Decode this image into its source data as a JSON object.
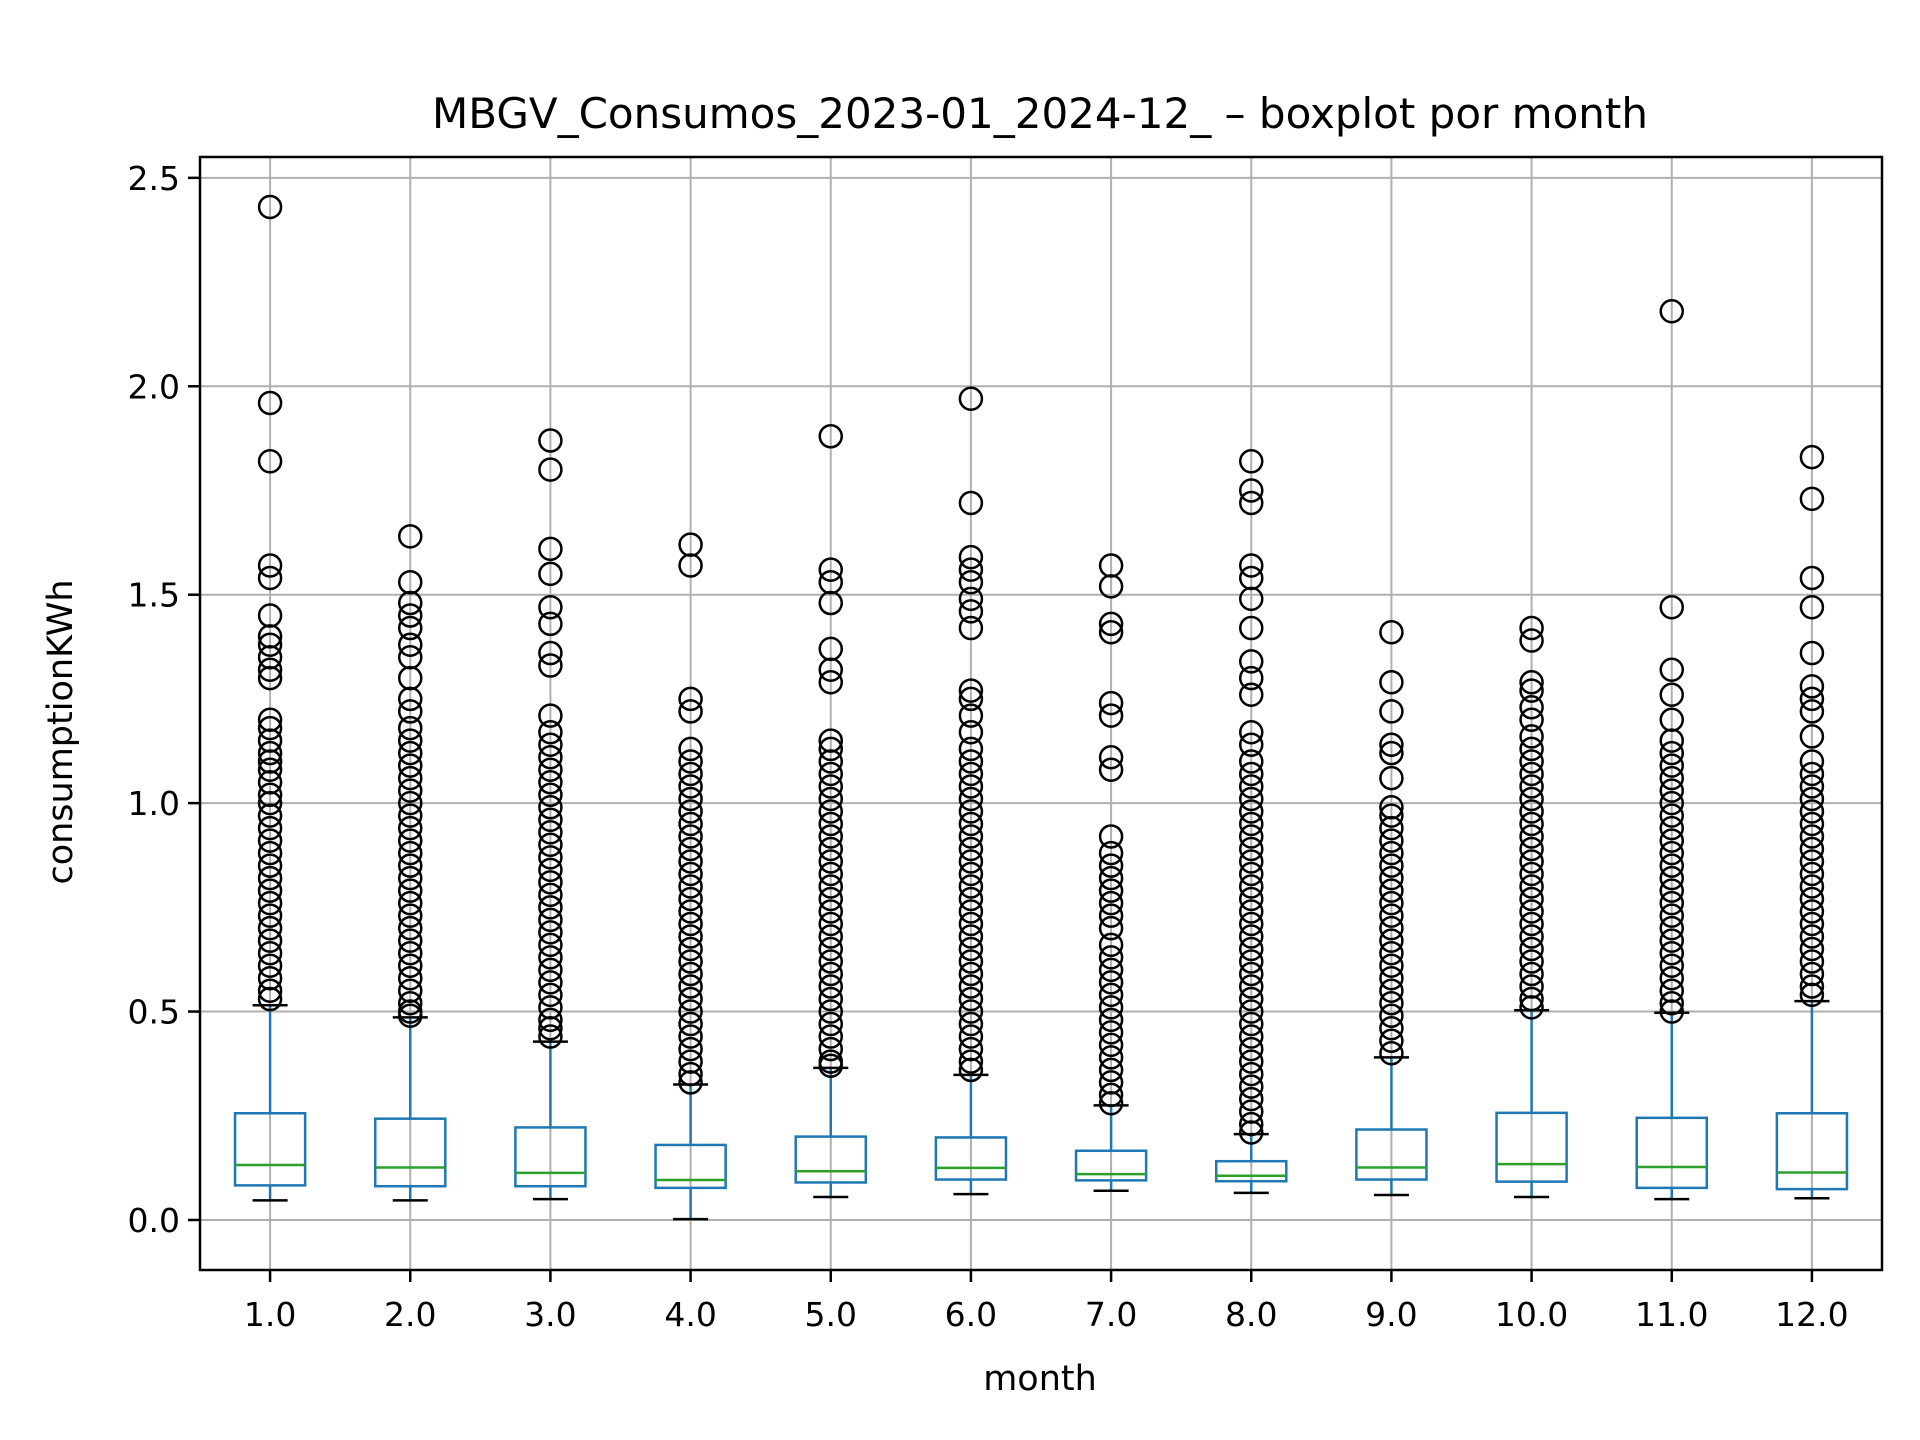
{
  "chart_data": {
    "type": "boxplot",
    "title": "MBGV_Consumos_2023-01_2024-12_ – boxplot por month",
    "xlabel": "month",
    "ylabel": "consumptionKWh",
    "categories": [
      "1.0",
      "2.0",
      "3.0",
      "4.0",
      "5.0",
      "6.0",
      "7.0",
      "8.0",
      "9.0",
      "10.0",
      "11.0",
      "12.0"
    ],
    "ylim": [
      -0.12,
      2.55
    ],
    "yticks": [
      0.0,
      0.5,
      1.0,
      1.5,
      2.0,
      2.5
    ],
    "ytick_labels": [
      "0.0",
      "0.5",
      "1.0",
      "1.5",
      "2.0",
      "2.5"
    ],
    "grid": true,
    "colors": {
      "box": "#1f77b4",
      "median": "#2ca02c",
      "whisker_cap": "#000000",
      "outlier": "#000000",
      "grid": "#b0b0b0"
    },
    "boxes": [
      {
        "month": "1.0",
        "whisker_low": 0.047,
        "q1": 0.083,
        "median": 0.132,
        "q3": 0.256,
        "whisker_high": 0.515,
        "outliers": [
          2.43,
          1.96,
          1.82,
          1.57,
          1.54,
          1.45,
          1.4,
          1.38,
          1.35,
          1.32,
          1.3,
          1.2,
          1.18,
          1.15,
          1.12,
          1.1,
          1.08,
          1.05,
          1.02,
          1.0,
          0.97,
          0.94,
          0.91,
          0.88,
          0.85,
          0.82,
          0.79,
          0.76,
          0.73,
          0.7,
          0.67,
          0.64,
          0.61,
          0.58,
          0.55,
          0.53
        ]
      },
      {
        "month": "2.0",
        "whisker_low": 0.047,
        "q1": 0.081,
        "median": 0.126,
        "q3": 0.243,
        "whisker_high": 0.486,
        "outliers": [
          1.64,
          1.53,
          1.48,
          1.45,
          1.42,
          1.38,
          1.35,
          1.3,
          1.25,
          1.22,
          1.18,
          1.15,
          1.12,
          1.09,
          1.06,
          1.03,
          1.0,
          0.97,
          0.94,
          0.91,
          0.88,
          0.85,
          0.82,
          0.79,
          0.76,
          0.73,
          0.7,
          0.67,
          0.64,
          0.61,
          0.58,
          0.55,
          0.52,
          0.5,
          0.49
        ]
      },
      {
        "month": "3.0",
        "whisker_low": 0.05,
        "q1": 0.081,
        "median": 0.113,
        "q3": 0.222,
        "whisker_high": 0.428,
        "outliers": [
          1.87,
          1.8,
          1.61,
          1.55,
          1.47,
          1.43,
          1.36,
          1.33,
          1.21,
          1.17,
          1.14,
          1.11,
          1.08,
          1.05,
          1.02,
          0.99,
          0.96,
          0.93,
          0.9,
          0.87,
          0.84,
          0.81,
          0.78,
          0.75,
          0.72,
          0.69,
          0.66,
          0.63,
          0.6,
          0.57,
          0.54,
          0.51,
          0.48,
          0.46,
          0.44
        ]
      },
      {
        "month": "4.0",
        "whisker_low": 0.002,
        "q1": 0.077,
        "median": 0.096,
        "q3": 0.18,
        "whisker_high": 0.325,
        "outliers": [
          1.62,
          1.57,
          1.25,
          1.22,
          1.13,
          1.1,
          1.07,
          1.04,
          1.01,
          0.98,
          0.95,
          0.92,
          0.89,
          0.86,
          0.83,
          0.8,
          0.77,
          0.74,
          0.71,
          0.68,
          0.65,
          0.62,
          0.59,
          0.56,
          0.53,
          0.5,
          0.47,
          0.44,
          0.41,
          0.38,
          0.35,
          0.33
        ]
      },
      {
        "month": "5.0",
        "whisker_low": 0.055,
        "q1": 0.09,
        "median": 0.117,
        "q3": 0.2,
        "whisker_high": 0.365,
        "outliers": [
          1.88,
          1.56,
          1.53,
          1.48,
          1.37,
          1.32,
          1.29,
          1.15,
          1.13,
          1.1,
          1.07,
          1.04,
          1.01,
          0.98,
          0.95,
          0.92,
          0.89,
          0.86,
          0.83,
          0.8,
          0.77,
          0.74,
          0.71,
          0.68,
          0.65,
          0.62,
          0.59,
          0.56,
          0.53,
          0.5,
          0.47,
          0.44,
          0.41,
          0.38,
          0.37
        ]
      },
      {
        "month": "6.0",
        "whisker_low": 0.062,
        "q1": 0.097,
        "median": 0.125,
        "q3": 0.198,
        "whisker_high": 0.348,
        "outliers": [
          1.97,
          1.72,
          1.59,
          1.56,
          1.53,
          1.49,
          1.46,
          1.42,
          1.27,
          1.25,
          1.21,
          1.17,
          1.13,
          1.1,
          1.07,
          1.04,
          1.01,
          0.98,
          0.95,
          0.92,
          0.89,
          0.86,
          0.83,
          0.8,
          0.77,
          0.74,
          0.71,
          0.68,
          0.65,
          0.62,
          0.59,
          0.56,
          0.53,
          0.5,
          0.47,
          0.44,
          0.41,
          0.38,
          0.36
        ]
      },
      {
        "month": "7.0",
        "whisker_low": 0.07,
        "q1": 0.095,
        "median": 0.11,
        "q3": 0.166,
        "whisker_high": 0.275,
        "outliers": [
          1.57,
          1.52,
          1.43,
          1.41,
          1.24,
          1.21,
          1.11,
          1.08,
          0.92,
          0.88,
          0.85,
          0.82,
          0.79,
          0.76,
          0.73,
          0.7,
          0.66,
          0.63,
          0.6,
          0.57,
          0.54,
          0.51,
          0.48,
          0.45,
          0.42,
          0.39,
          0.36,
          0.33,
          0.3,
          0.28
        ]
      },
      {
        "month": "8.0",
        "whisker_low": 0.065,
        "q1": 0.093,
        "median": 0.106,
        "q3": 0.141,
        "whisker_high": 0.206,
        "outliers": [
          1.82,
          1.75,
          1.72,
          1.57,
          1.54,
          1.49,
          1.42,
          1.34,
          1.3,
          1.26,
          1.17,
          1.14,
          1.1,
          1.07,
          1.04,
          1.01,
          0.98,
          0.95,
          0.92,
          0.89,
          0.86,
          0.83,
          0.8,
          0.77,
          0.74,
          0.71,
          0.68,
          0.65,
          0.62,
          0.59,
          0.56,
          0.53,
          0.5,
          0.47,
          0.44,
          0.41,
          0.38,
          0.35,
          0.32,
          0.29,
          0.26,
          0.23,
          0.21
        ]
      },
      {
        "month": "9.0",
        "whisker_low": 0.06,
        "q1": 0.097,
        "median": 0.126,
        "q3": 0.217,
        "whisker_high": 0.39,
        "outliers": [
          1.41,
          1.29,
          1.22,
          1.14,
          1.12,
          1.06,
          0.99,
          0.97,
          0.94,
          0.91,
          0.88,
          0.85,
          0.82,
          0.79,
          0.76,
          0.73,
          0.7,
          0.67,
          0.64,
          0.61,
          0.58,
          0.55,
          0.52,
          0.49,
          0.46,
          0.43,
          0.4
        ]
      },
      {
        "month": "10.0",
        "whisker_low": 0.055,
        "q1": 0.092,
        "median": 0.134,
        "q3": 0.257,
        "whisker_high": 0.503,
        "outliers": [
          1.42,
          1.39,
          1.29,
          1.27,
          1.23,
          1.2,
          1.16,
          1.13,
          1.1,
          1.07,
          1.04,
          1.01,
          0.98,
          0.95,
          0.92,
          0.89,
          0.86,
          0.83,
          0.8,
          0.77,
          0.74,
          0.71,
          0.68,
          0.65,
          0.62,
          0.59,
          0.56,
          0.53,
          0.51
        ]
      },
      {
        "month": "11.0",
        "whisker_low": 0.05,
        "q1": 0.077,
        "median": 0.127,
        "q3": 0.245,
        "whisker_high": 0.497,
        "outliers": [
          2.18,
          1.47,
          1.32,
          1.26,
          1.2,
          1.15,
          1.12,
          1.09,
          1.06,
          1.03,
          1.0,
          0.97,
          0.94,
          0.91,
          0.88,
          0.85,
          0.82,
          0.79,
          0.76,
          0.73,
          0.7,
          0.67,
          0.64,
          0.61,
          0.58,
          0.55,
          0.52,
          0.5
        ]
      },
      {
        "month": "12.0",
        "whisker_low": 0.052,
        "q1": 0.074,
        "median": 0.114,
        "q3": 0.256,
        "whisker_high": 0.525,
        "outliers": [
          1.83,
          1.73,
          1.54,
          1.47,
          1.36,
          1.28,
          1.25,
          1.22,
          1.16,
          1.1,
          1.07,
          1.04,
          1.01,
          0.98,
          0.95,
          0.92,
          0.89,
          0.86,
          0.83,
          0.8,
          0.77,
          0.74,
          0.71,
          0.68,
          0.65,
          0.62,
          0.59,
          0.56,
          0.54
        ]
      }
    ]
  }
}
